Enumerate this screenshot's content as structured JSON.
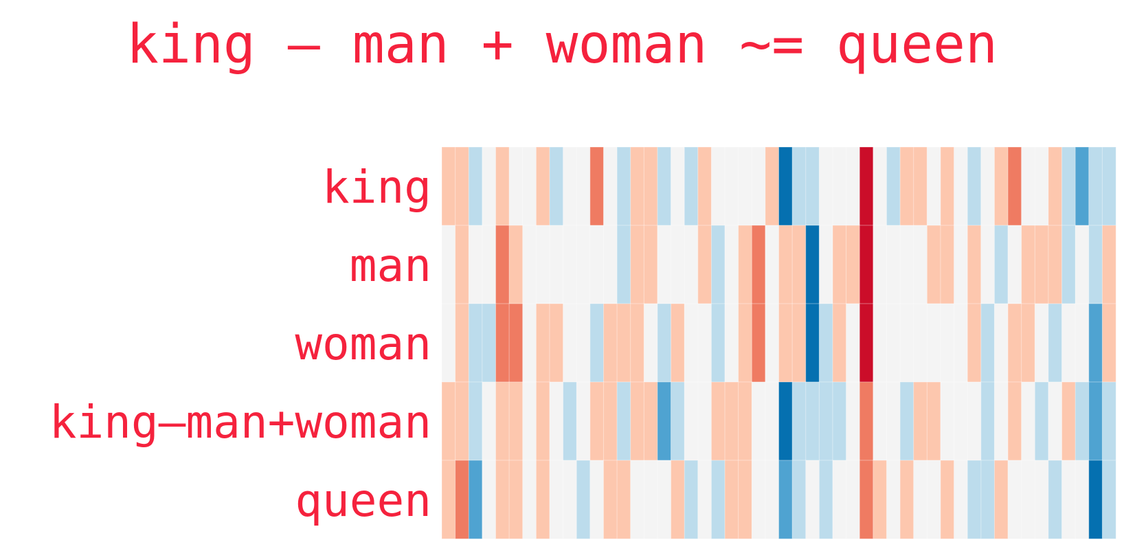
{
  "chart_data": {
    "type": "heatmap",
    "title": "king – man + woman ~= queen",
    "rows": [
      "king",
      "man",
      "woman",
      "king–man+woman",
      "queen"
    ],
    "columns": 50,
    "value_range": [
      -2,
      2
    ],
    "colormap": "diverging: blue (negative) - light gray (0) - red (positive)",
    "grid": false,
    "values": [
      [
        1,
        1,
        -1,
        0,
        1,
        0,
        0,
        1,
        -1,
        0,
        0,
        2,
        0,
        -1,
        1,
        1,
        -1,
        0,
        -1,
        1,
        0,
        0,
        0,
        0,
        1,
        -3,
        -1,
        -1,
        0,
        0,
        0,
        3,
        0,
        -1,
        1,
        1,
        0,
        1,
        0,
        -1,
        0,
        1,
        2,
        0,
        0,
        1,
        -1,
        -2,
        -1,
        -1
      ],
      [
        0,
        1,
        0,
        0,
        2,
        1,
        0,
        0,
        0,
        0,
        0,
        0,
        0,
        -1,
        1,
        1,
        0,
        0,
        0,
        1,
        -1,
        0,
        1,
        2,
        0,
        1,
        1,
        -3,
        0,
        1,
        1,
        3,
        0,
        0,
        0,
        0,
        1,
        1,
        0,
        1,
        0,
        -1,
        0,
        1,
        1,
        1,
        -1,
        0,
        -1,
        1
      ],
      [
        0,
        1,
        -1,
        -1,
        2,
        2,
        0,
        1,
        1,
        0,
        0,
        -1,
        1,
        1,
        1,
        0,
        -1,
        1,
        0,
        0,
        -1,
        0,
        1,
        2,
        0,
        1,
        1,
        -3,
        -1,
        1,
        0,
        3,
        0,
        0,
        0,
        0,
        0,
        0,
        0,
        1,
        -1,
        0,
        1,
        1,
        0,
        -1,
        0,
        0,
        -2,
        1
      ],
      [
        1,
        1,
        -1,
        0,
        1,
        1,
        0,
        1,
        0,
        -1,
        0,
        1,
        1,
        -1,
        1,
        1,
        -2,
        -1,
        0,
        0,
        1,
        1,
        1,
        0,
        0,
        -3,
        -1,
        -1,
        -1,
        -1,
        0,
        2,
        0,
        0,
        -1,
        1,
        1,
        0,
        0,
        0,
        -1,
        0,
        1,
        0,
        -1,
        0,
        1,
        -1,
        -2,
        -1
      ],
      [
        1,
        2,
        -2,
        0,
        1,
        1,
        0,
        1,
        0,
        0,
        -1,
        0,
        1,
        1,
        0,
        0,
        0,
        1,
        -1,
        0,
        -1,
        1,
        1,
        0,
        0,
        -2,
        -1,
        0,
        -1,
        0,
        0,
        2,
        1,
        0,
        1,
        0,
        0,
        1,
        0,
        -1,
        -1,
        1,
        0,
        0,
        0,
        -1,
        0,
        0,
        -3,
        -1
      ]
    ]
  }
}
